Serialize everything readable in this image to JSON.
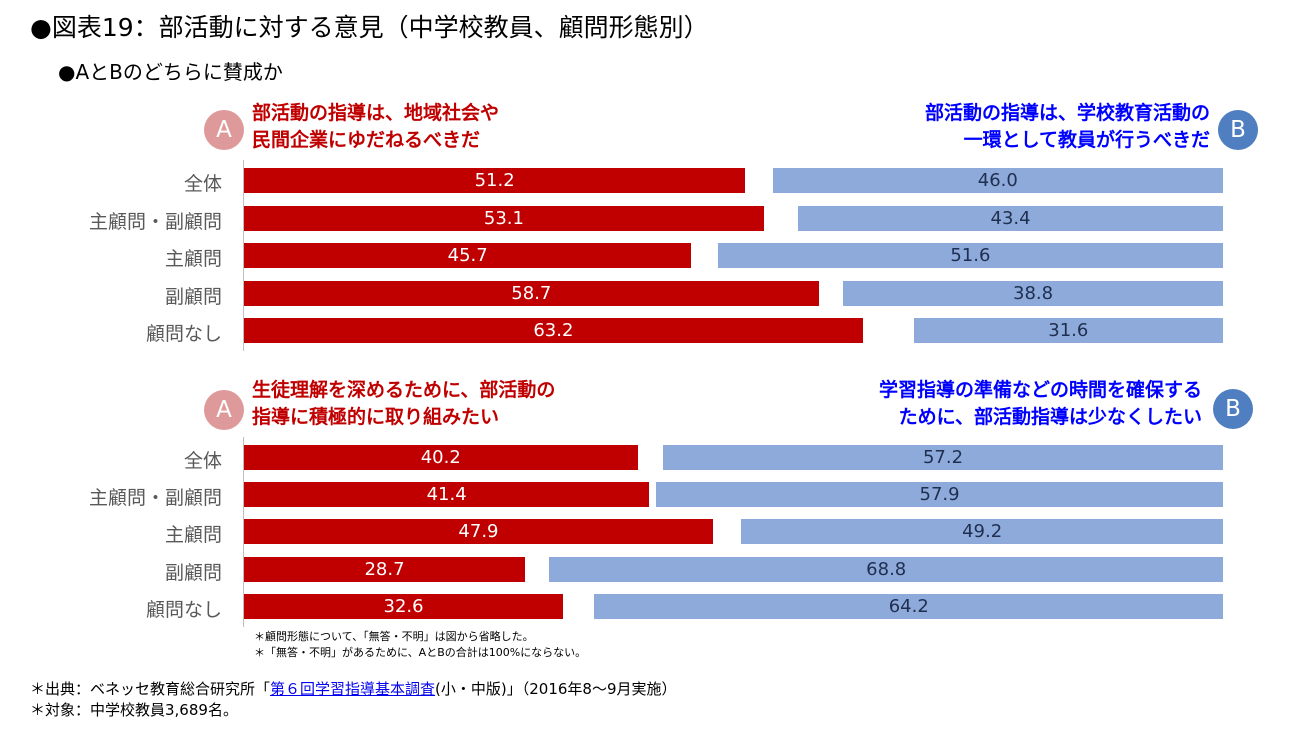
{
  "title": "●図表19：部活動に対する意見（中学校教員、顧問形態別）",
  "subtitle": "●AとBのどちらに賛成か",
  "colors": {
    "a_bar": "#c00000",
    "b_bar": "#8eaadb",
    "a_text": "#c00000",
    "b_text": "#0000ff"
  },
  "circle_a": "A",
  "circle_b": "B",
  "chart_data": [
    {
      "type": "bar",
      "orientation": "horizontal-diverging",
      "a_statement": [
        "部活動の指導は、地域社会や",
        "民間企業にゆだねるべきだ"
      ],
      "b_statement": [
        "部活動の指導は、学校教育活動の",
        "一環として教員が行うべきだ"
      ],
      "categories": [
        "全体",
        "主顧問・副顧問",
        "主顧問",
        "副顧問",
        "顧問なし"
      ],
      "series": [
        {
          "name": "A",
          "values": [
            51.2,
            53.1,
            45.7,
            58.7,
            63.2
          ]
        },
        {
          "name": "B",
          "values": [
            46.0,
            43.4,
            51.6,
            38.8,
            31.6
          ]
        }
      ],
      "value_labels": {
        "A": [
          "51.2",
          "53.1",
          "45.7",
          "58.7",
          "63.2"
        ],
        "B": [
          "46.0",
          "43.4",
          "51.6",
          "38.8",
          "31.6"
        ]
      },
      "xlim": [
        0,
        100
      ],
      "unit": "%"
    },
    {
      "type": "bar",
      "orientation": "horizontal-diverging",
      "a_statement": [
        "生徒理解を深めるために、部活動の",
        "指導に積極的に取り組みたい"
      ],
      "b_statement": [
        "学習指導の準備などの時間を確保する",
        "ために、部活動指導は少なくしたい"
      ],
      "categories": [
        "全体",
        "主顧問・副顧問",
        "主顧問",
        "副顧問",
        "顧問なし"
      ],
      "series": [
        {
          "name": "A",
          "values": [
            40.2,
            41.4,
            47.9,
            28.7,
            32.6
          ]
        },
        {
          "name": "B",
          "values": [
            57.2,
            57.9,
            49.2,
            68.8,
            64.2
          ]
        }
      ],
      "value_labels": {
        "A": [
          "40.2",
          "41.4",
          "47.9",
          "28.7",
          "32.6"
        ],
        "B": [
          "57.2",
          "57.9",
          "49.2",
          "68.8",
          "64.2"
        ]
      },
      "xlim": [
        0,
        100
      ],
      "unit": "%"
    }
  ],
  "notes": [
    "＊顧問形態について、「無答・不明」は図から省略した。",
    "＊「無答・不明」があるために、AとBの合計は100%にならない。"
  ],
  "source": {
    "prefix": "＊出典：ベネッセ教育総合研究所「",
    "link_text": "第６回学習指導基本調査",
    "suffix": "(小・中版)」（2016年8～9月実施）"
  },
  "target": "＊対象：中学校教員3,689名。"
}
